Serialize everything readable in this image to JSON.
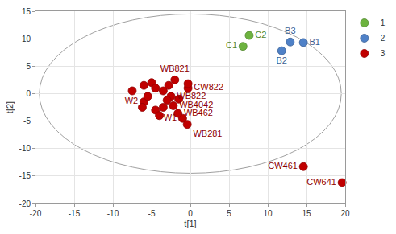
{
  "chart_data": {
    "type": "scatter",
    "x_label": "t[1]",
    "y_label": "t[2]",
    "xlim": [
      -20,
      20
    ],
    "xticks": [
      -20,
      -15,
      -10,
      -5,
      0,
      5,
      10,
      15,
      20
    ],
    "ylim": [
      -20,
      15
    ],
    "yticks": [
      -20,
      -15,
      -10,
      -5,
      0,
      5,
      10,
      15
    ],
    "grid": true,
    "legend": "top right",
    "ellipse": {
      "x": [
        -19.5,
        19.5
      ],
      "y": [
        -14.5,
        14.5
      ]
    },
    "series": [
      {
        "name": "1",
        "color": "#6db33f",
        "x": [
          6.8,
          7.6
        ],
        "y": [
          8.6,
          10.6
        ],
        "labels": [
          "C1",
          "C2"
        ]
      },
      {
        "name": "2",
        "color": "#4f81c7",
        "x": [
          14.6,
          11.8,
          12.9
        ],
        "y": [
          9.3,
          7.8,
          9.4
        ],
        "labels": [
          "B1",
          "B2",
          "B3"
        ]
      },
      {
        "name": "3",
        "color": "#c00000",
        "x": [
          -2.0,
          -0.3,
          -2.5,
          -2.2,
          -1.0,
          -1.6,
          -0.4,
          -6.0,
          14.6,
          19.6,
          -6.0,
          -5.0,
          -4.5,
          -3.5,
          -5.5,
          -6.2,
          -4.5,
          -3.0,
          -4.0,
          -1.5,
          -2.8,
          -7.5,
          -3.5,
          -0.3
        ],
        "y": [
          2.5,
          1.0,
          -0.5,
          -2.2,
          -4.5,
          -3.6,
          -5.6,
          -1.5,
          -13.3,
          -16.2,
          1.5,
          2.0,
          1.0,
          0.5,
          -0.5,
          -2.5,
          -3.0,
          -1.2,
          -4.0,
          -1.0,
          1.5,
          0.5,
          -2.5,
          1.8
        ],
        "labels": [
          "WB821",
          "CW822",
          "WB822",
          "WB4042",
          "W1",
          "WB462",
          "WB281",
          "W2",
          "CW461",
          "CW641",
          null,
          null,
          null,
          null,
          null,
          null,
          null,
          null,
          null,
          null,
          null,
          null,
          null,
          null
        ]
      }
    ]
  }
}
